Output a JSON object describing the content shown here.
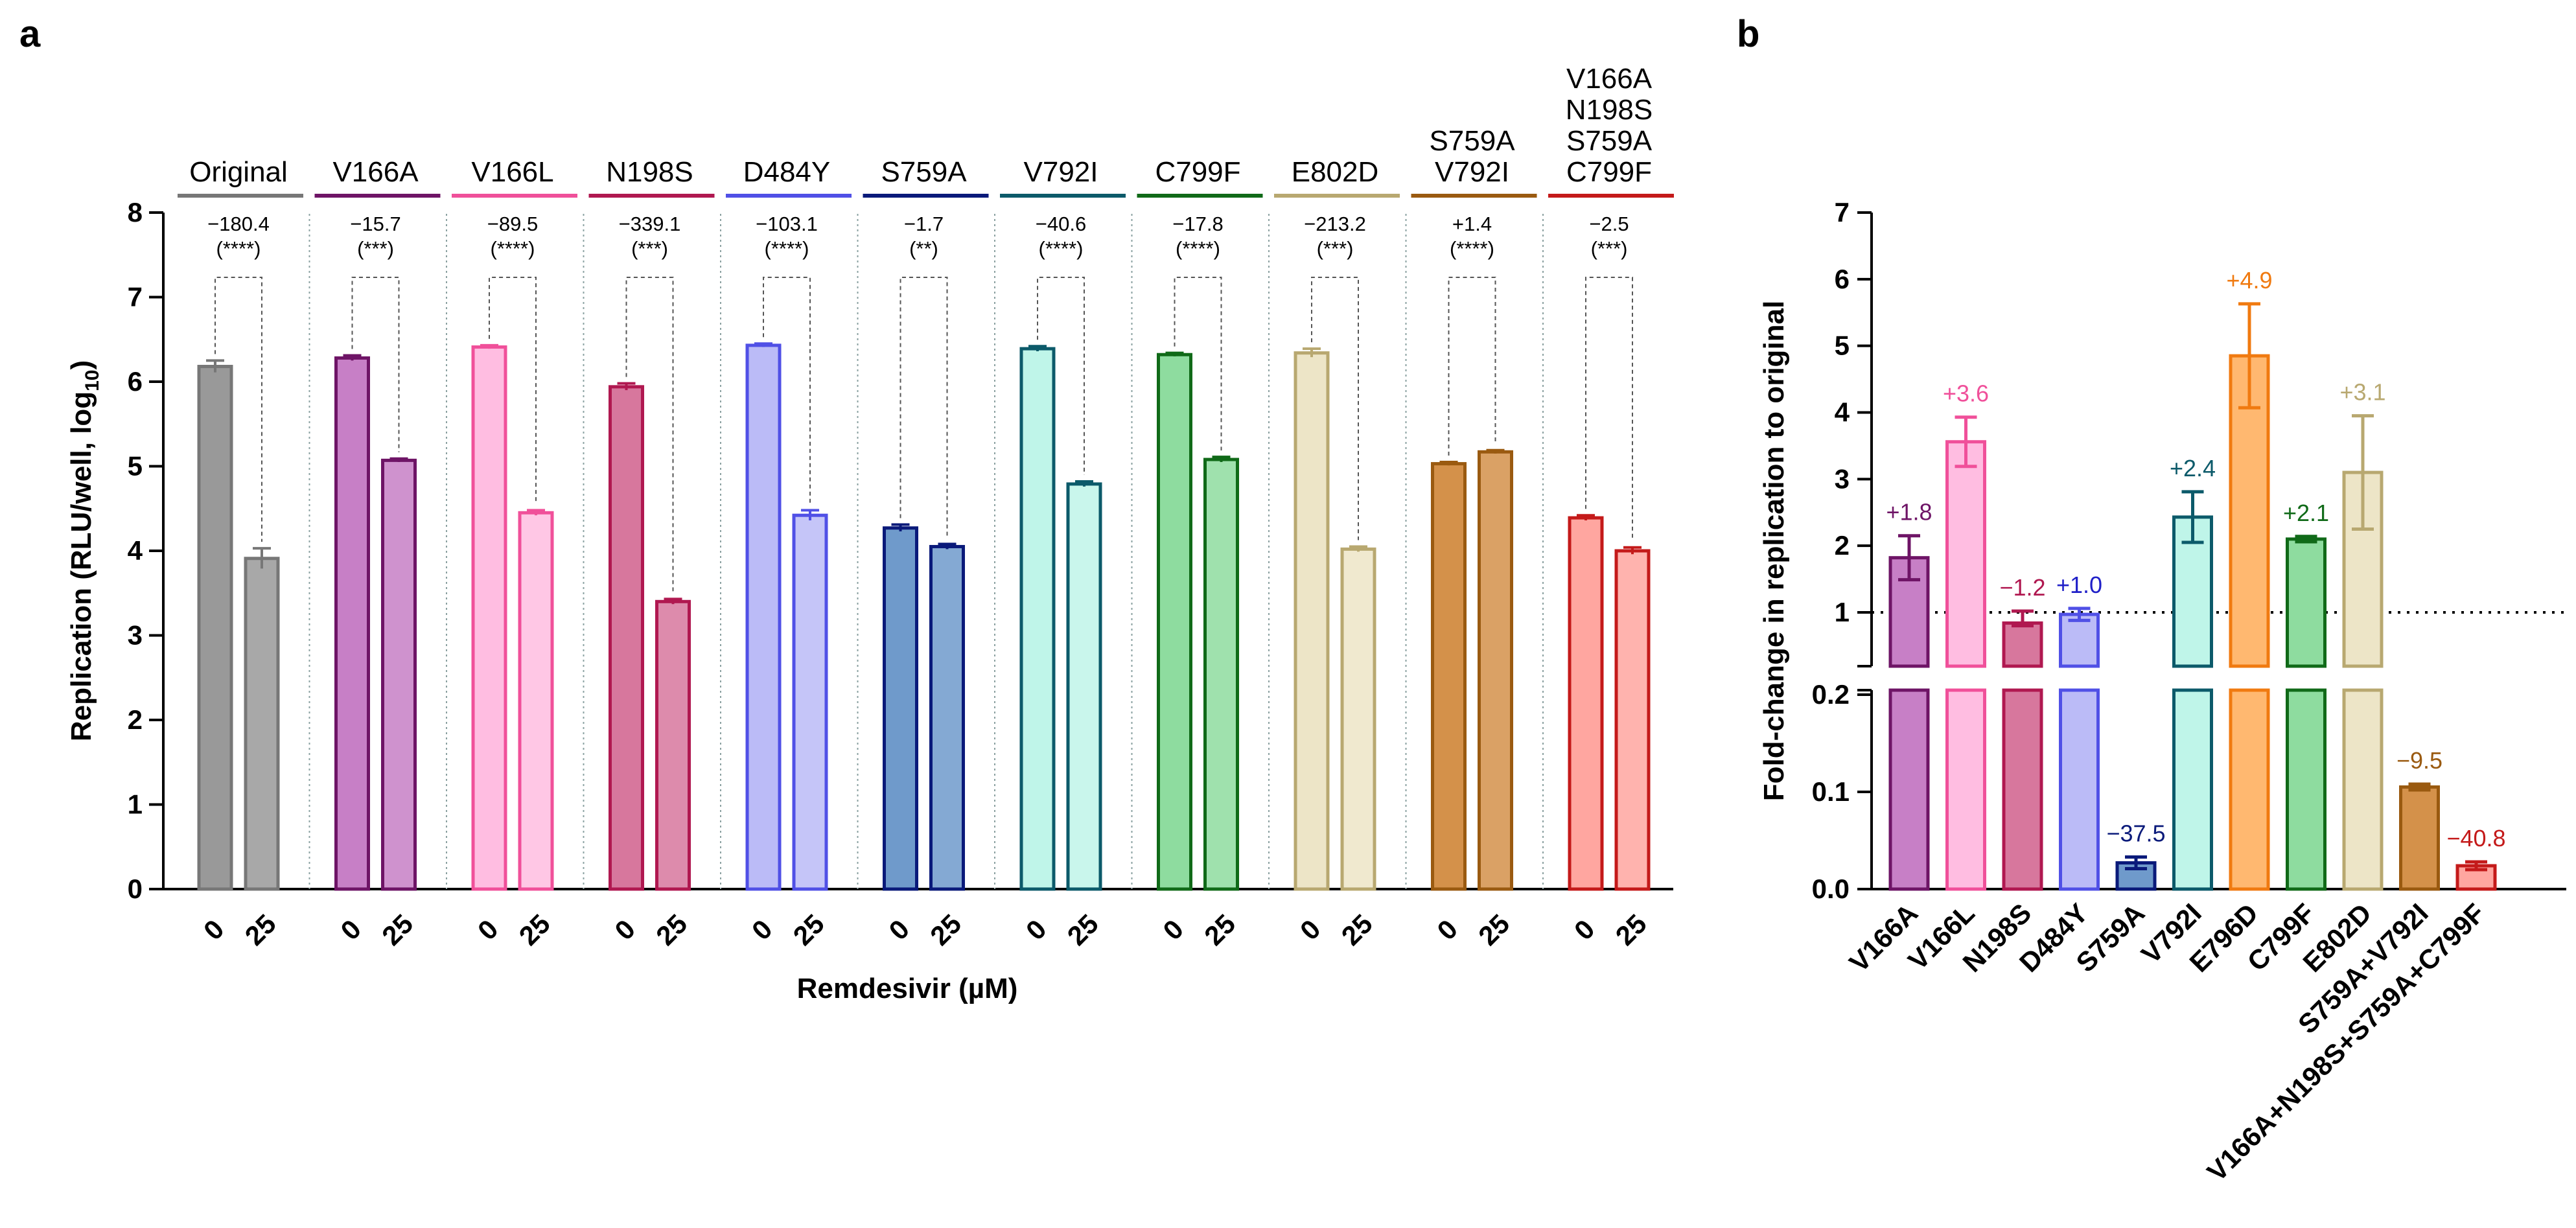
{
  "chart_data": [
    {
      "panel": "a",
      "type": "bar",
      "ylabel": "Replication (RLU/well, log",
      "ylabel_sub": "10",
      "ylabel_close": ")",
      "xlabel": "Remdesivir (µM)",
      "ylim": [
        0,
        8
      ],
      "yticks": [
        "0",
        "1",
        "2",
        "3",
        "4",
        "5",
        "6",
        "7",
        "8"
      ],
      "dose_labels": [
        "0",
        "25"
      ],
      "groups": [
        {
          "name": [
            "Original"
          ],
          "color": "#777777",
          "light": "#999999",
          "values": [
            6.18,
            3.91
          ],
          "errors": [
            0.07,
            0.12
          ],
          "fold": "−180.4",
          "sig": "(****)"
        },
        {
          "name": [
            "V166A"
          ],
          "color": "#6E1466",
          "light": "#C77FC6",
          "values": [
            6.28,
            5.07
          ],
          "errors": [
            0.03,
            0.02
          ],
          "fold": "−15.7",
          "sig": "(***)"
        },
        {
          "name": [
            "V166L"
          ],
          "color": "#F0509A",
          "light": "#FFBDE1",
          "values": [
            6.41,
            4.45
          ],
          "errors": [
            0.02,
            0.03
          ],
          "fold": "−89.5",
          "sig": "(****)"
        },
        {
          "name": [
            "N198S"
          ],
          "color": "#B01850",
          "light": "#D7779D",
          "values": [
            5.94,
            3.4
          ],
          "errors": [
            0.04,
            0.03
          ],
          "fold": "−339.1",
          "sig": "(***)"
        },
        {
          "name": [
            "D484Y"
          ],
          "color": "#5050E6",
          "light": "#BBBBF7",
          "values": [
            6.43,
            4.42
          ],
          "errors": [
            0.02,
            0.06
          ],
          "fold": "−103.1",
          "sig": "(****)"
        },
        {
          "name": [
            "S759A"
          ],
          "color": "#0A1A7A",
          "light": "#6F9ACB",
          "values": [
            4.27,
            4.05
          ],
          "errors": [
            0.04,
            0.03
          ],
          "fold": "−1.7",
          "sig": "(**)"
        },
        {
          "name": [
            "V792I"
          ],
          "color": "#0C5A6A",
          "light": "#BFF5E9",
          "values": [
            6.39,
            4.79
          ],
          "errors": [
            0.03,
            0.03
          ],
          "fold": "−40.6",
          "sig": "(****)"
        },
        {
          "name": [
            "C799F"
          ],
          "color": "#106A18",
          "light": "#8EDC9F",
          "values": [
            6.32,
            5.08
          ],
          "errors": [
            0.02,
            0.03
          ],
          "fold": "−17.8",
          "sig": "(****)"
        },
        {
          "name": [
            "E802D"
          ],
          "color": "#B8A870",
          "light": "#EDE5C7",
          "values": [
            6.34,
            4.02
          ],
          "errors": [
            0.05,
            0.03
          ],
          "fold": "−213.2",
          "sig": "(***)"
        },
        {
          "name": [
            "S759A",
            "V792I"
          ],
          "color": "#9A5A10",
          "light": "#D4914A",
          "values": [
            5.03,
            5.17
          ],
          "errors": [
            0.02,
            0.02
          ],
          "fold": "+1.4",
          "sig": "(****)"
        },
        {
          "name": [
            "V166A",
            "N198S",
            "S759A",
            "C799F"
          ],
          "color": "#C41A1A",
          "light": "#FFA6A0",
          "values": [
            4.39,
            4.0
          ],
          "errors": [
            0.03,
            0.04
          ],
          "fold": "−2.5",
          "sig": "(***)"
        }
      ]
    },
    {
      "panel": "b",
      "type": "bar",
      "ylabel": "Fold-change in replication to original",
      "axis_break": true,
      "lower_ylim": [
        0.0,
        0.2
      ],
      "lower_yticks": [
        "0.0",
        "0.1",
        "0.2"
      ],
      "upper_ylim": [
        1,
        7
      ],
      "upper_yticks": [
        "1",
        "2",
        "3",
        "4",
        "5",
        "6",
        "7"
      ],
      "reference_line": 1,
      "categories": [
        "V166A",
        "V166L",
        "N198S",
        "D484Y",
        "S759A",
        "V792I",
        "E796D",
        "C799F",
        "E802D",
        "S759A+V792I",
        "V166A+N198S+S759A+C799F"
      ],
      "values": [
        1.82,
        3.56,
        0.84,
        0.97,
        0.027,
        2.43,
        4.85,
        2.1,
        3.1,
        0.105,
        0.024
      ],
      "errors": [
        0.33,
        0.37,
        0.18,
        0.09,
        0.006,
        0.38,
        0.78,
        0.04,
        0.85,
        0.003,
        0.004
      ],
      "annotations": [
        "+1.8",
        "+3.6",
        "−1.2",
        "+1.0",
        "−37.5",
        "+2.4",
        "+4.9",
        "+2.1",
        "+3.1",
        "−9.5",
        "−40.8"
      ],
      "colors": [
        "#6E1466",
        "#F0509A",
        "#B01850",
        "#5050E6",
        "#0A1A7A",
        "#0C5A6A",
        "#F07A10",
        "#106A18",
        "#B8A870",
        "#9A5A10",
        "#C41A1A"
      ],
      "fills": [
        "#C77FC6",
        "#FFBDE1",
        "#D7779D",
        "#BBBBF7",
        "#6F9ACB",
        "#BFF5E9",
        "#FFB870",
        "#8EDC9F",
        "#EDE5C7",
        "#D4914A",
        "#FFA6A0"
      ],
      "label_colors": [
        "#6E1466",
        "#F0509A",
        "#B01850",
        "#2020C8",
        "#0A1A7A",
        "#0C5A6A",
        "#F07A10",
        "#106A18",
        "#B8A870",
        "#9A5A10",
        "#C41A1A"
      ]
    }
  ]
}
